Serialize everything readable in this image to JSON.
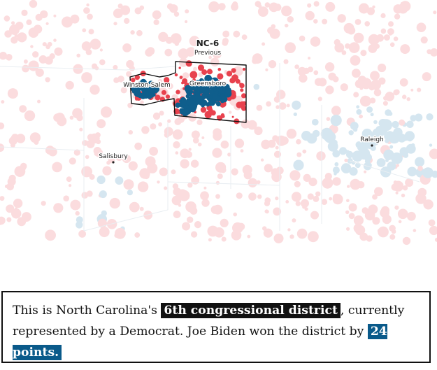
{
  "map": {
    "district": {
      "name": "NC-6",
      "sublabel": "Previous"
    },
    "cities": [
      {
        "id": "winston-salem",
        "name": "Winston-Salem"
      },
      {
        "id": "greensboro",
        "name": "Greensboro"
      },
      {
        "id": "salisbury",
        "name": "Salisbury"
      },
      {
        "id": "raleigh",
        "name": "Raleigh"
      }
    ],
    "colors": {
      "democrat": "#0f5e8c",
      "republican": "#e8424e",
      "democrat_faded": "#d5e6f0",
      "republican_faded": "#fbdcde",
      "district_outline": "#111111"
    }
  },
  "caption": {
    "part1": "This is North Carolina's ",
    "highlight1": "6th congressional district",
    "part2": ", currently represented by a Democrat. Joe Biden won the district by ",
    "highlight2": "24 points."
  }
}
